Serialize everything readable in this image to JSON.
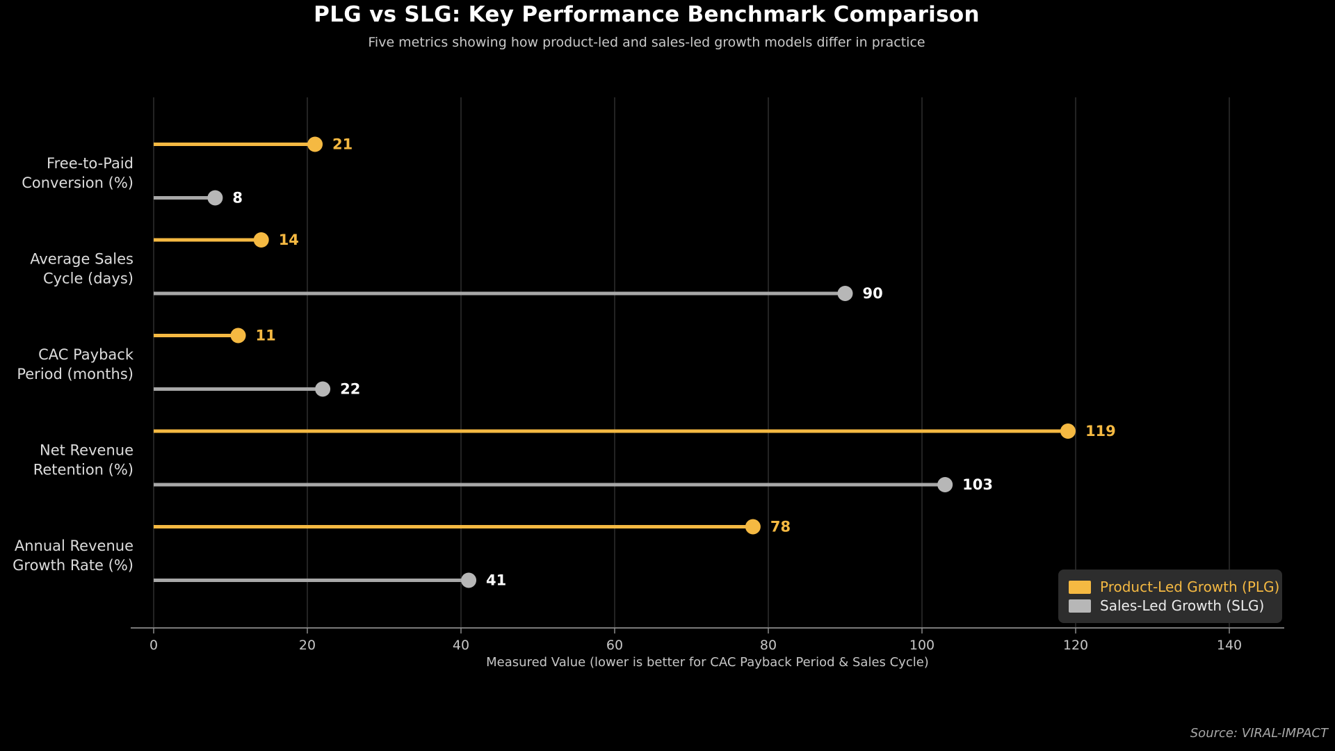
{
  "chart_data": {
    "type": "lollipop",
    "orientation": "horizontal",
    "title": "PLG vs SLG: Key Performance Benchmark Comparison",
    "subtitle": "Five metrics showing how product-led and sales-led growth models differ in practice",
    "categories": [
      {
        "label": "Free-to-Paid Conversion (%)",
        "label_lines": [
          "Free-to-Paid",
          "Conversion (%)"
        ]
      },
      {
        "label": "Average Sales Cycle (days)",
        "label_lines": [
          "Average Sales",
          "Cycle (days)"
        ]
      },
      {
        "label": "CAC Payback Period (months)",
        "label_lines": [
          "CAC Payback",
          "Period (months)"
        ]
      },
      {
        "label": "Net Revenue Retention (%)",
        "label_lines": [
          "Net Revenue",
          "Retention (%)"
        ]
      },
      {
        "label": "Annual Revenue Growth Rate (%)",
        "label_lines": [
          "Annual Revenue",
          "Growth Rate (%)"
        ]
      }
    ],
    "series": [
      {
        "name": "Product-Led Growth (PLG)",
        "key": "plg",
        "stem_color": "#F5B942",
        "dot_color": "#F5B942",
        "value_label_color": "#F5B942",
        "values": [
          21,
          14,
          11,
          119,
          78
        ]
      },
      {
        "name": "Sales-Led Growth (SLG)",
        "key": "slg",
        "stem_color": "#A8A8A8",
        "dot_color": "#B7B7B7",
        "value_label_color": "#FFFFFF",
        "values": [
          8,
          90,
          22,
          103,
          41
        ]
      }
    ],
    "xlabel": "Measured Value  (lower is better for CAC Payback Period & Sales Cycle)",
    "xlim": [
      0,
      148
    ],
    "xticks": [
      "0",
      "20",
      "40",
      "60",
      "80",
      "100",
      "120",
      "140"
    ],
    "xtick_values": [
      0,
      20,
      40,
      60,
      80,
      100,
      120,
      140
    ],
    "grid": "vertical",
    "legend_position": "lower right",
    "colors": {
      "background": "#000000",
      "gridline": "#323232",
      "axis_line": "#8C8C8C",
      "tick_label": "#C6C6C6",
      "category_label": "#DDDDDD",
      "xlabel": "#C6C6C6",
      "title": "#FFFFFF",
      "subtitle": "#C9C9C9"
    }
  },
  "legend": {
    "items": [
      {
        "label": "Product-Led Growth (PLG)",
        "swatch_color": "#F5B942",
        "text_color": "#F5B942"
      },
      {
        "label": "Sales-Led Growth (SLG)",
        "swatch_color": "#B7B7B7",
        "text_color": "#EBEBEB"
      }
    ]
  },
  "footer": {
    "source": "Source: VIRAL-IMPACT"
  }
}
